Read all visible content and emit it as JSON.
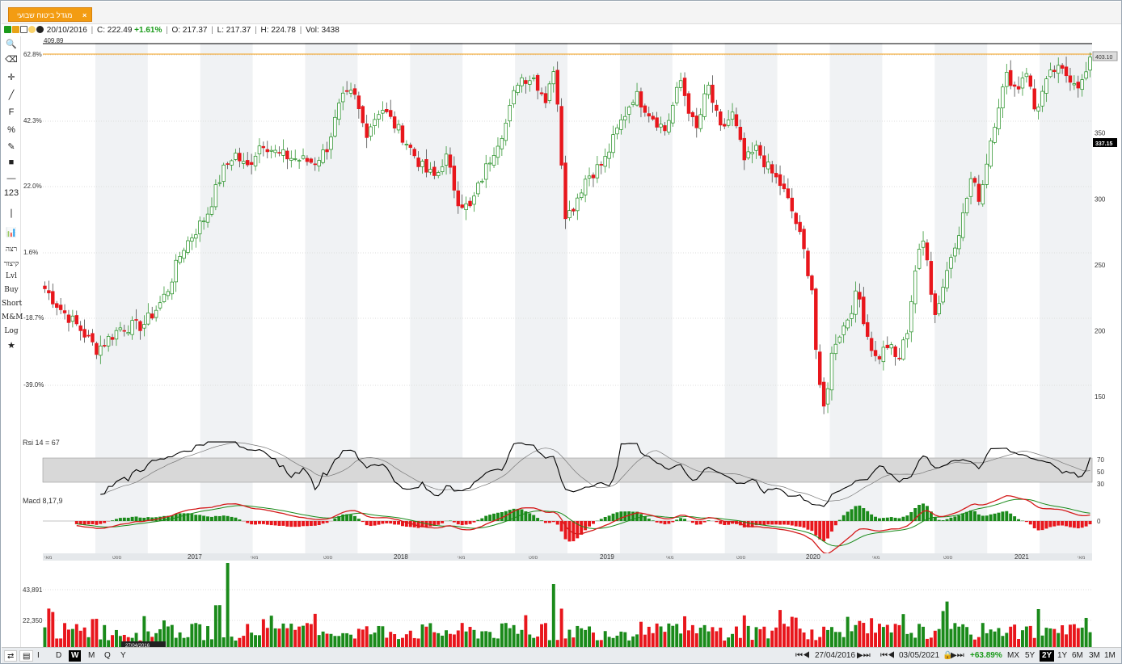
{
  "tab": {
    "title": "מגדל ביטוח שבועי",
    "close": "×"
  },
  "info": {
    "date": "20/10/2016",
    "close_label": "C:",
    "close": "222.49",
    "change": "+1.61%",
    "open_label": "O:",
    "open": "217.37",
    "low_label": "L:",
    "low": "217.37",
    "high_label": "H:",
    "high": "224.78",
    "vol_label": "Vol:",
    "vol": "3438"
  },
  "toolbar": [
    {
      "name": "search-icon",
      "glyph": "🔍"
    },
    {
      "name": "eraser-icon",
      "glyph": "⌫"
    },
    {
      "name": "crosshair-icon",
      "glyph": "✛"
    },
    {
      "name": "line-tool-icon",
      "glyph": "╱"
    },
    {
      "name": "fibonacci-icon",
      "glyph": "F"
    },
    {
      "name": "percent-icon",
      "glyph": "%"
    },
    {
      "name": "pencil-icon",
      "glyph": "✎"
    },
    {
      "name": "color-swatch-icon",
      "glyph": "■"
    },
    {
      "name": "horizontal-line-icon",
      "glyph": "—"
    },
    {
      "name": "numbers-icon",
      "glyph": "123"
    },
    {
      "name": "vertical-line-icon",
      "glyph": "❘"
    },
    {
      "name": "candles-icon",
      "glyph": "📊"
    },
    {
      "name": "tool-ratsa",
      "glyph": "רצה",
      "txt": true
    },
    {
      "name": "tool-kitzur",
      "glyph": "קיצור",
      "txt": true
    },
    {
      "name": "tool-lvl",
      "glyph": "Lvl",
      "txt": true
    },
    {
      "name": "tool-buy",
      "glyph": "Buy",
      "txt": true
    },
    {
      "name": "tool-short",
      "glyph": "Short",
      "txt": true
    },
    {
      "name": "tool-mm",
      "glyph": "M&M",
      "txt": true
    },
    {
      "name": "tool-log",
      "glyph": "Log",
      "txt": true
    },
    {
      "name": "star-icon",
      "glyph": "★"
    }
  ],
  "colors": {
    "up": "#1a8a1a",
    "down": "#e8161c",
    "band": "#f0f2f4",
    "accent": "#f39c12"
  },
  "chart_data": {
    "type": "candlestick",
    "top_label": "409.89",
    "last_price_label": "403.10",
    "cursor_price_label": "337.15",
    "y_right_ticks": [
      150,
      200,
      250,
      300,
      350
    ],
    "y_left_pct_ticks": [
      "62.8%",
      "42.3%",
      "22.0%",
      "1.6%",
      "-18.7%",
      "-39.0%"
    ],
    "x_year_labels": [
      "2017",
      "2018",
      "2019",
      "2020",
      "2021"
    ],
    "x_month_labels": [
      "מאי",
      "ספט",
      "מאי",
      "ספט",
      "מאי",
      "ספט",
      "מאי",
      "ספט",
      "מאי",
      "ספט",
      "מאי",
      "ספט",
      "מאי"
    ],
    "start_date": "27/04/2016",
    "end_date": "03/05/2021",
    "price_anchors": [
      [
        0,
        232
      ],
      [
        5,
        217
      ],
      [
        11,
        203
      ],
      [
        17,
        186
      ],
      [
        25,
        203
      ],
      [
        32,
        204
      ],
      [
        37,
        218
      ],
      [
        40,
        230
      ],
      [
        45,
        262
      ],
      [
        53,
        288
      ],
      [
        58,
        320
      ],
      [
        62,
        335
      ],
      [
        66,
        323
      ],
      [
        71,
        344
      ],
      [
        76,
        334
      ],
      [
        83,
        330
      ],
      [
        88,
        328
      ],
      [
        92,
        337
      ],
      [
        97,
        375
      ],
      [
        101,
        380
      ],
      [
        105,
        350
      ],
      [
        110,
        370
      ],
      [
        117,
        348
      ],
      [
        124,
        322
      ],
      [
        128,
        316
      ],
      [
        131,
        334
      ],
      [
        135,
        300
      ],
      [
        139,
        292
      ],
      [
        143,
        316
      ],
      [
        147,
        338
      ],
      [
        151,
        358
      ],
      [
        155,
        392
      ],
      [
        160,
        392
      ],
      [
        164,
        375
      ],
      [
        166,
        400
      ],
      [
        168,
        372
      ],
      [
        170,
        290
      ],
      [
        172,
        290
      ],
      [
        177,
        316
      ],
      [
        183,
        328
      ],
      [
        188,
        356
      ],
      [
        193,
        380
      ],
      [
        198,
        365
      ],
      [
        203,
        352
      ],
      [
        208,
        390
      ],
      [
        213,
        350
      ],
      [
        217,
        386
      ],
      [
        221,
        352
      ],
      [
        225,
        364
      ],
      [
        229,
        328
      ],
      [
        233,
        338
      ],
      [
        237,
        322
      ],
      [
        241,
        310
      ],
      [
        245,
        288
      ],
      [
        248,
        264
      ],
      [
        251,
        232
      ],
      [
        253,
        160
      ],
      [
        255,
        140
      ],
      [
        258,
        190
      ],
      [
        262,
        206
      ],
      [
        266,
        230
      ],
      [
        269,
        198
      ],
      [
        272,
        178
      ],
      [
        276,
        190
      ],
      [
        279,
        176
      ],
      [
        282,
        198
      ],
      [
        285,
        250
      ],
      [
        288,
        272
      ],
      [
        291,
        210
      ],
      [
        294,
        235
      ],
      [
        297,
        262
      ],
      [
        300,
        283
      ],
      [
        303,
        315
      ],
      [
        306,
        300
      ],
      [
        309,
        340
      ],
      [
        312,
        372
      ],
      [
        315,
        395
      ],
      [
        318,
        382
      ],
      [
        321,
        400
      ],
      [
        324,
        366
      ],
      [
        327,
        384
      ],
      [
        330,
        398
      ],
      [
        333,
        396
      ],
      [
        336,
        392
      ],
      [
        339,
        386
      ],
      [
        342,
        403
      ]
    ],
    "rsi": {
      "label": "Rsi 14 = 67",
      "ticks": [
        70,
        50,
        30
      ],
      "last": 67
    },
    "macd": {
      "label": "Macd 8,17,9",
      "ticks": [
        0
      ]
    },
    "volume": {
      "ticks": [
        "43,891",
        "22,350"
      ]
    }
  },
  "bottom": {
    "periods": [
      "I",
      "D",
      "W",
      "M",
      "Q",
      "Y"
    ],
    "selected_period": "W",
    "start": "27/04/2016",
    "end": "03/05/2021",
    "change": "+63.89%",
    "ranges": [
      "MX",
      "5Y",
      "2Y",
      "1Y",
      "6M",
      "3M",
      "1M"
    ],
    "selected_range": "2Y"
  }
}
